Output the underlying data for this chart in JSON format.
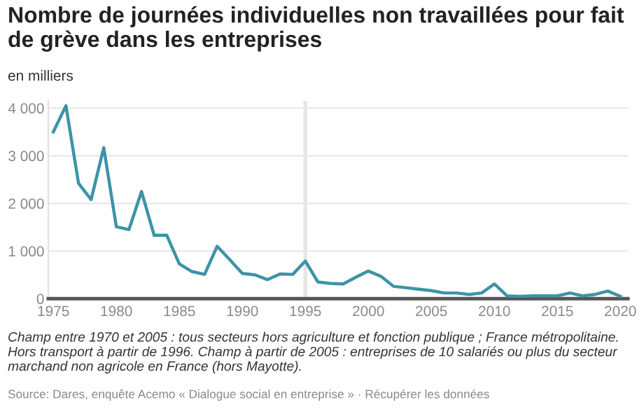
{
  "chart_data": {
    "type": "line",
    "title": "Nombre de journées individuelles non travaillées pour fait de grève dans les entreprises",
    "subtitle": "en milliers",
    "x": [
      1975,
      1976,
      1977,
      1978,
      1979,
      1980,
      1981,
      1982,
      1983,
      1984,
      1985,
      1986,
      1987,
      1988,
      1989,
      1990,
      1991,
      1992,
      1993,
      1994,
      1995,
      1996,
      1997,
      1998,
      1999,
      2000,
      2001,
      2002,
      2003,
      2004,
      2005,
      2006,
      2007,
      2008,
      2009,
      2010,
      2011,
      2012,
      2013,
      2014,
      2015,
      2016,
      2017,
      2018,
      2019,
      2020
    ],
    "series": [
      {
        "color": "#3d93a8",
        "values": [
          3500,
          4050,
          2420,
          2080,
          3170,
          1510,
          1450,
          2250,
          1330,
          1330,
          730,
          570,
          510,
          1100,
          820,
          530,
          500,
          400,
          520,
          510,
          790,
          350,
          320,
          310,
          450,
          580,
          470,
          260,
          230,
          200,
          170,
          120,
          120,
          90,
          120,
          310,
          60,
          50,
          60,
          60,
          60,
          120,
          60,
          90,
          160,
          50
        ]
      }
    ],
    "xlim": [
      1974.6,
      2020.6
    ],
    "xticks": [
      1975,
      1980,
      1985,
      1990,
      1995,
      2000,
      2005,
      2010,
      2015,
      2020
    ],
    "ylim": [
      0,
      4150
    ],
    "yticks": [
      0,
      {
        "value": 1000,
        "label": "1 000"
      },
      {
        "value": 2000,
        "label": "2 000"
      },
      {
        "value": 3000,
        "label": "3 000"
      },
      {
        "value": 4000,
        "label": "4 000"
      }
    ],
    "grid": "y",
    "legend": false,
    "line_style": "solid",
    "marker": "none",
    "bands": [
      {
        "axis": "x",
        "from": 1994.85,
        "to": 1995.15,
        "color": "#e6e6e6"
      }
    ],
    "annotations": [
      "Champ entre 1970 et 2005 : tous secteurs hors agriculture et fonction publique ; France métropolitaine. Hors transport à partir de 1996. Champ à partir de 2005 : entreprises de 10 salariés ou plus du secteur marchand non agricole en France (hors Mayotte).",
      "Source: Dares, enquête Acemo « Dialogue social en entreprise » · Récupérer les données"
    ]
  }
}
